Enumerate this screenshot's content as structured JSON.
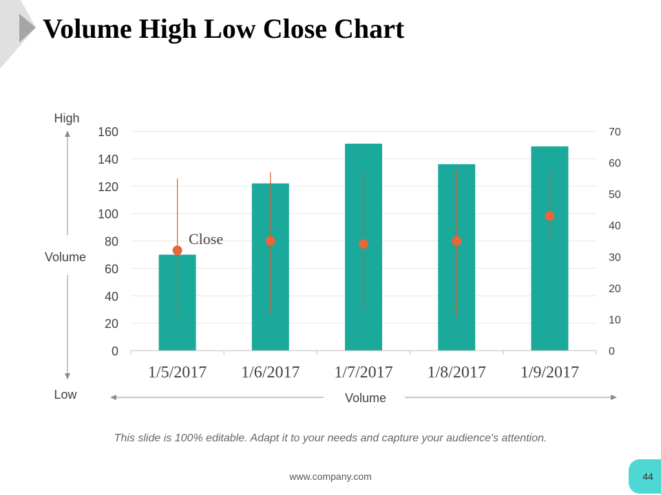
{
  "slide": {
    "title": "Volume High Low Close Chart",
    "footer_note": "This slide is 100% editable. Adapt it to your needs and capture your audience's attention.",
    "footer_url": "www.company.com",
    "page_number": "44"
  },
  "annotations": {
    "high_label": "High",
    "low_label": "Low",
    "volume_side_label": "Volume",
    "volume_bottom_label": "Volume",
    "close_label": "Close"
  },
  "colors": {
    "volume_bar": "#1aa99a",
    "high_low_line": "#c8622e",
    "close_marker": "#e8663a",
    "grid": "#e6e6e6",
    "badge": "#4fd7d3",
    "corner": "#d9d9d9"
  },
  "chart_data": {
    "type": "bar",
    "title": "Volume High Low Close Chart",
    "categories": [
      "1/5/2017",
      "1/6/2017",
      "1/7/2017",
      "1/8/2017",
      "1/9/2017"
    ],
    "left_axis": {
      "min": 0,
      "max": 160,
      "step": 20,
      "ticks": [
        "0",
        "20",
        "40",
        "60",
        "80",
        "100",
        "120",
        "140",
        "160"
      ]
    },
    "right_axis": {
      "min": 0,
      "max": 70,
      "step": 10,
      "ticks": [
        "0",
        "10",
        "20",
        "30",
        "40",
        "50",
        "60",
        "70"
      ]
    },
    "series": [
      {
        "name": "Volume",
        "axis": "left",
        "values": [
          70,
          122,
          151,
          136,
          149
        ]
      },
      {
        "name": "High",
        "axis": "right",
        "values": [
          55,
          57,
          57,
          58,
          58
        ]
      },
      {
        "name": "Low",
        "axis": "right",
        "values": [
          11,
          12,
          13,
          11,
          35
        ]
      },
      {
        "name": "Close",
        "axis": "right",
        "values": [
          32,
          35,
          34,
          35,
          43
        ]
      }
    ],
    "grid": true
  }
}
